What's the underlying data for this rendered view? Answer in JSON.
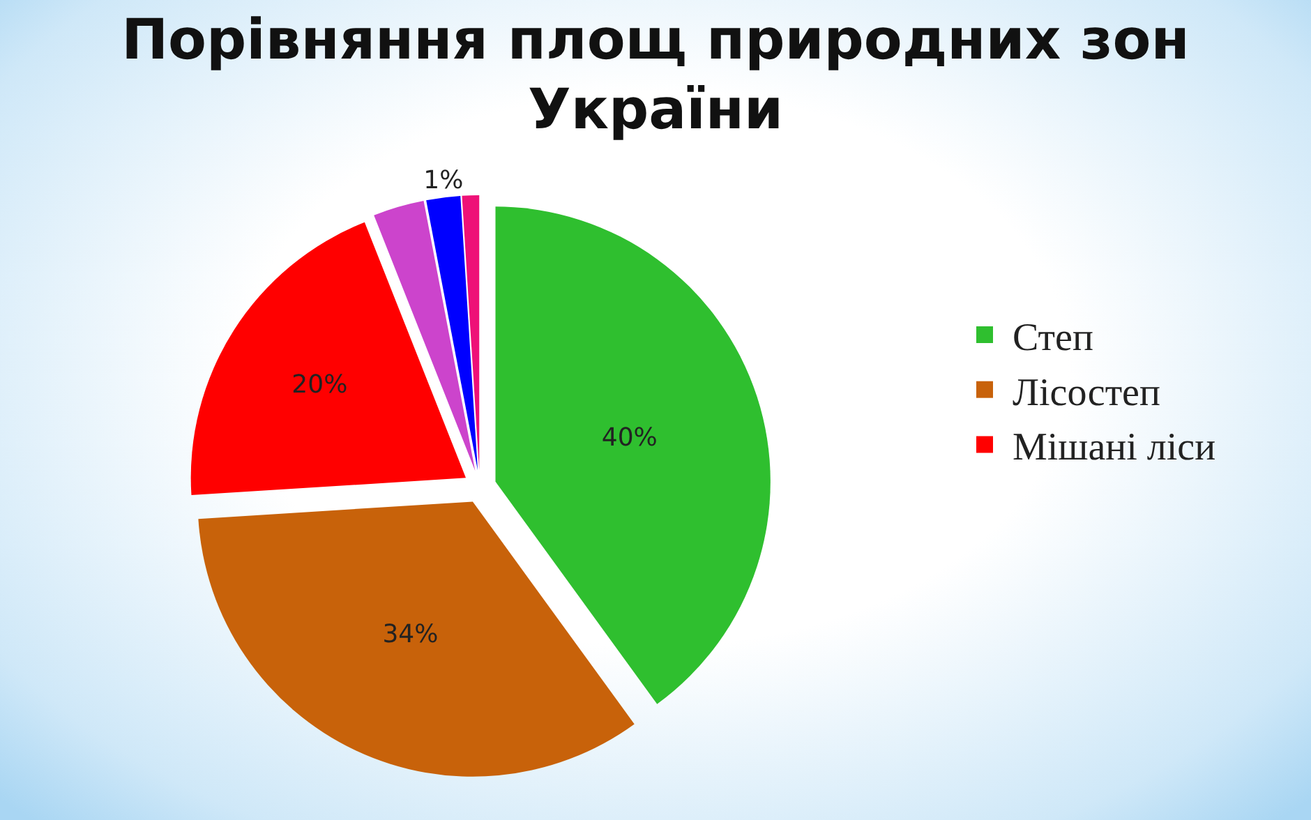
{
  "chart_data": {
    "type": "pie",
    "title": "Порівняння площ природних зон України",
    "categories": [
      "Степ",
      "Лісостеп",
      "Мішані ліси",
      null,
      null,
      null
    ],
    "values": [
      40,
      34,
      20,
      3,
      2,
      1
    ],
    "colors": [
      "#2fbf2f",
      "#c8620a",
      "#ff0000",
      "#cc44cc",
      "#0000ff",
      "#ee1177"
    ],
    "value_labels": [
      "40%",
      "34%",
      "20%",
      null,
      null,
      "1%"
    ],
    "legend": "right"
  }
}
